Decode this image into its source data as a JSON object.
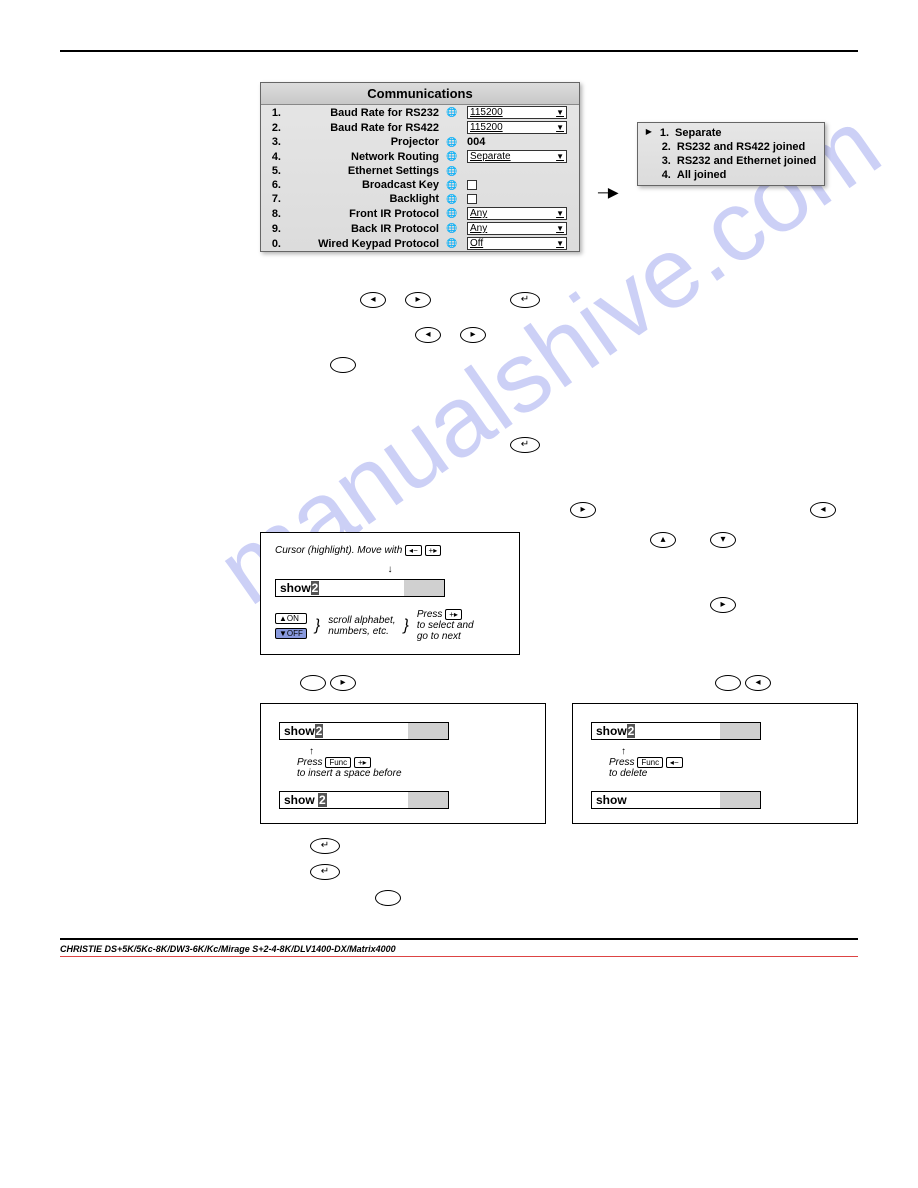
{
  "watermark": "manualshive.com",
  "comm": {
    "title": "Communications",
    "rows": [
      {
        "n": "1.",
        "label": "Baud Rate for RS232",
        "globe": true,
        "type": "dd",
        "val": "115200"
      },
      {
        "n": "2.",
        "label": "Baud Rate for RS422",
        "globe": false,
        "type": "dd",
        "val": "115200"
      },
      {
        "n": "3.",
        "label": "Projector",
        "globe": true,
        "type": "text",
        "val": "004"
      },
      {
        "n": "4.",
        "label": "Network Routing",
        "globe": true,
        "type": "dd",
        "val": "Separate"
      },
      {
        "n": "5.",
        "label": "Ethernet Settings",
        "globe": true,
        "type": "none",
        "val": ""
      },
      {
        "n": "6.",
        "label": "Broadcast Key",
        "globe": true,
        "type": "chk",
        "val": ""
      },
      {
        "n": "7.",
        "label": "Backlight",
        "globe": true,
        "type": "chk",
        "val": ""
      },
      {
        "n": "8.",
        "label": "Front IR Protocol",
        "globe": true,
        "type": "dd",
        "val": "Any"
      },
      {
        "n": "9.",
        "label": "Back IR Protocol",
        "globe": true,
        "type": "dd",
        "val": "Any"
      },
      {
        "n": "0.",
        "label": "Wired Keypad Protocol",
        "globe": true,
        "type": "dd",
        "val": "Off"
      }
    ]
  },
  "submenu": {
    "items": [
      {
        "n": "1.",
        "label": "Separate",
        "sel": true
      },
      {
        "n": "2.",
        "label": "RS232 and RS422 joined",
        "sel": false
      },
      {
        "n": "3.",
        "label": "RS232 and Ethernet joined",
        "sel": false
      },
      {
        "n": "4.",
        "label": "All joined",
        "sel": false
      }
    ]
  },
  "glyphs": {
    "left": "◂",
    "right": "▸",
    "up": "▴",
    "down": "▾",
    "enter": "↵",
    "blank": ""
  },
  "diagram1": {
    "caption_top": "Cursor (highlight). Move with",
    "field1": "show",
    "field1_hi": "2",
    "on": "▲ON",
    "off": "▼OFF",
    "scroll": "scroll alphabet,\nnumbers, etc.",
    "press": "Press",
    "sel": "to select and\ngo to next"
  },
  "two": {
    "left": {
      "before": "show",
      "before_hi": "2",
      "press": "Press",
      "note": "to insert a space before",
      "after": "show ",
      "after_hi": "2"
    },
    "right": {
      "before": "show",
      "before_hi": "2",
      "press": "Press",
      "note": "to delete",
      "after": "show",
      "after_hi": ""
    }
  },
  "footer": {
    "left": "CHRISTIE DS+5K/5Kc-8K/DW3-6K/Kc/Mirage S+2-4-8K/DLV1400-DX/Matrix4000",
    "right": ""
  },
  "colors": {
    "accent": "#6e78e6",
    "panel": "#dcdcdc"
  }
}
